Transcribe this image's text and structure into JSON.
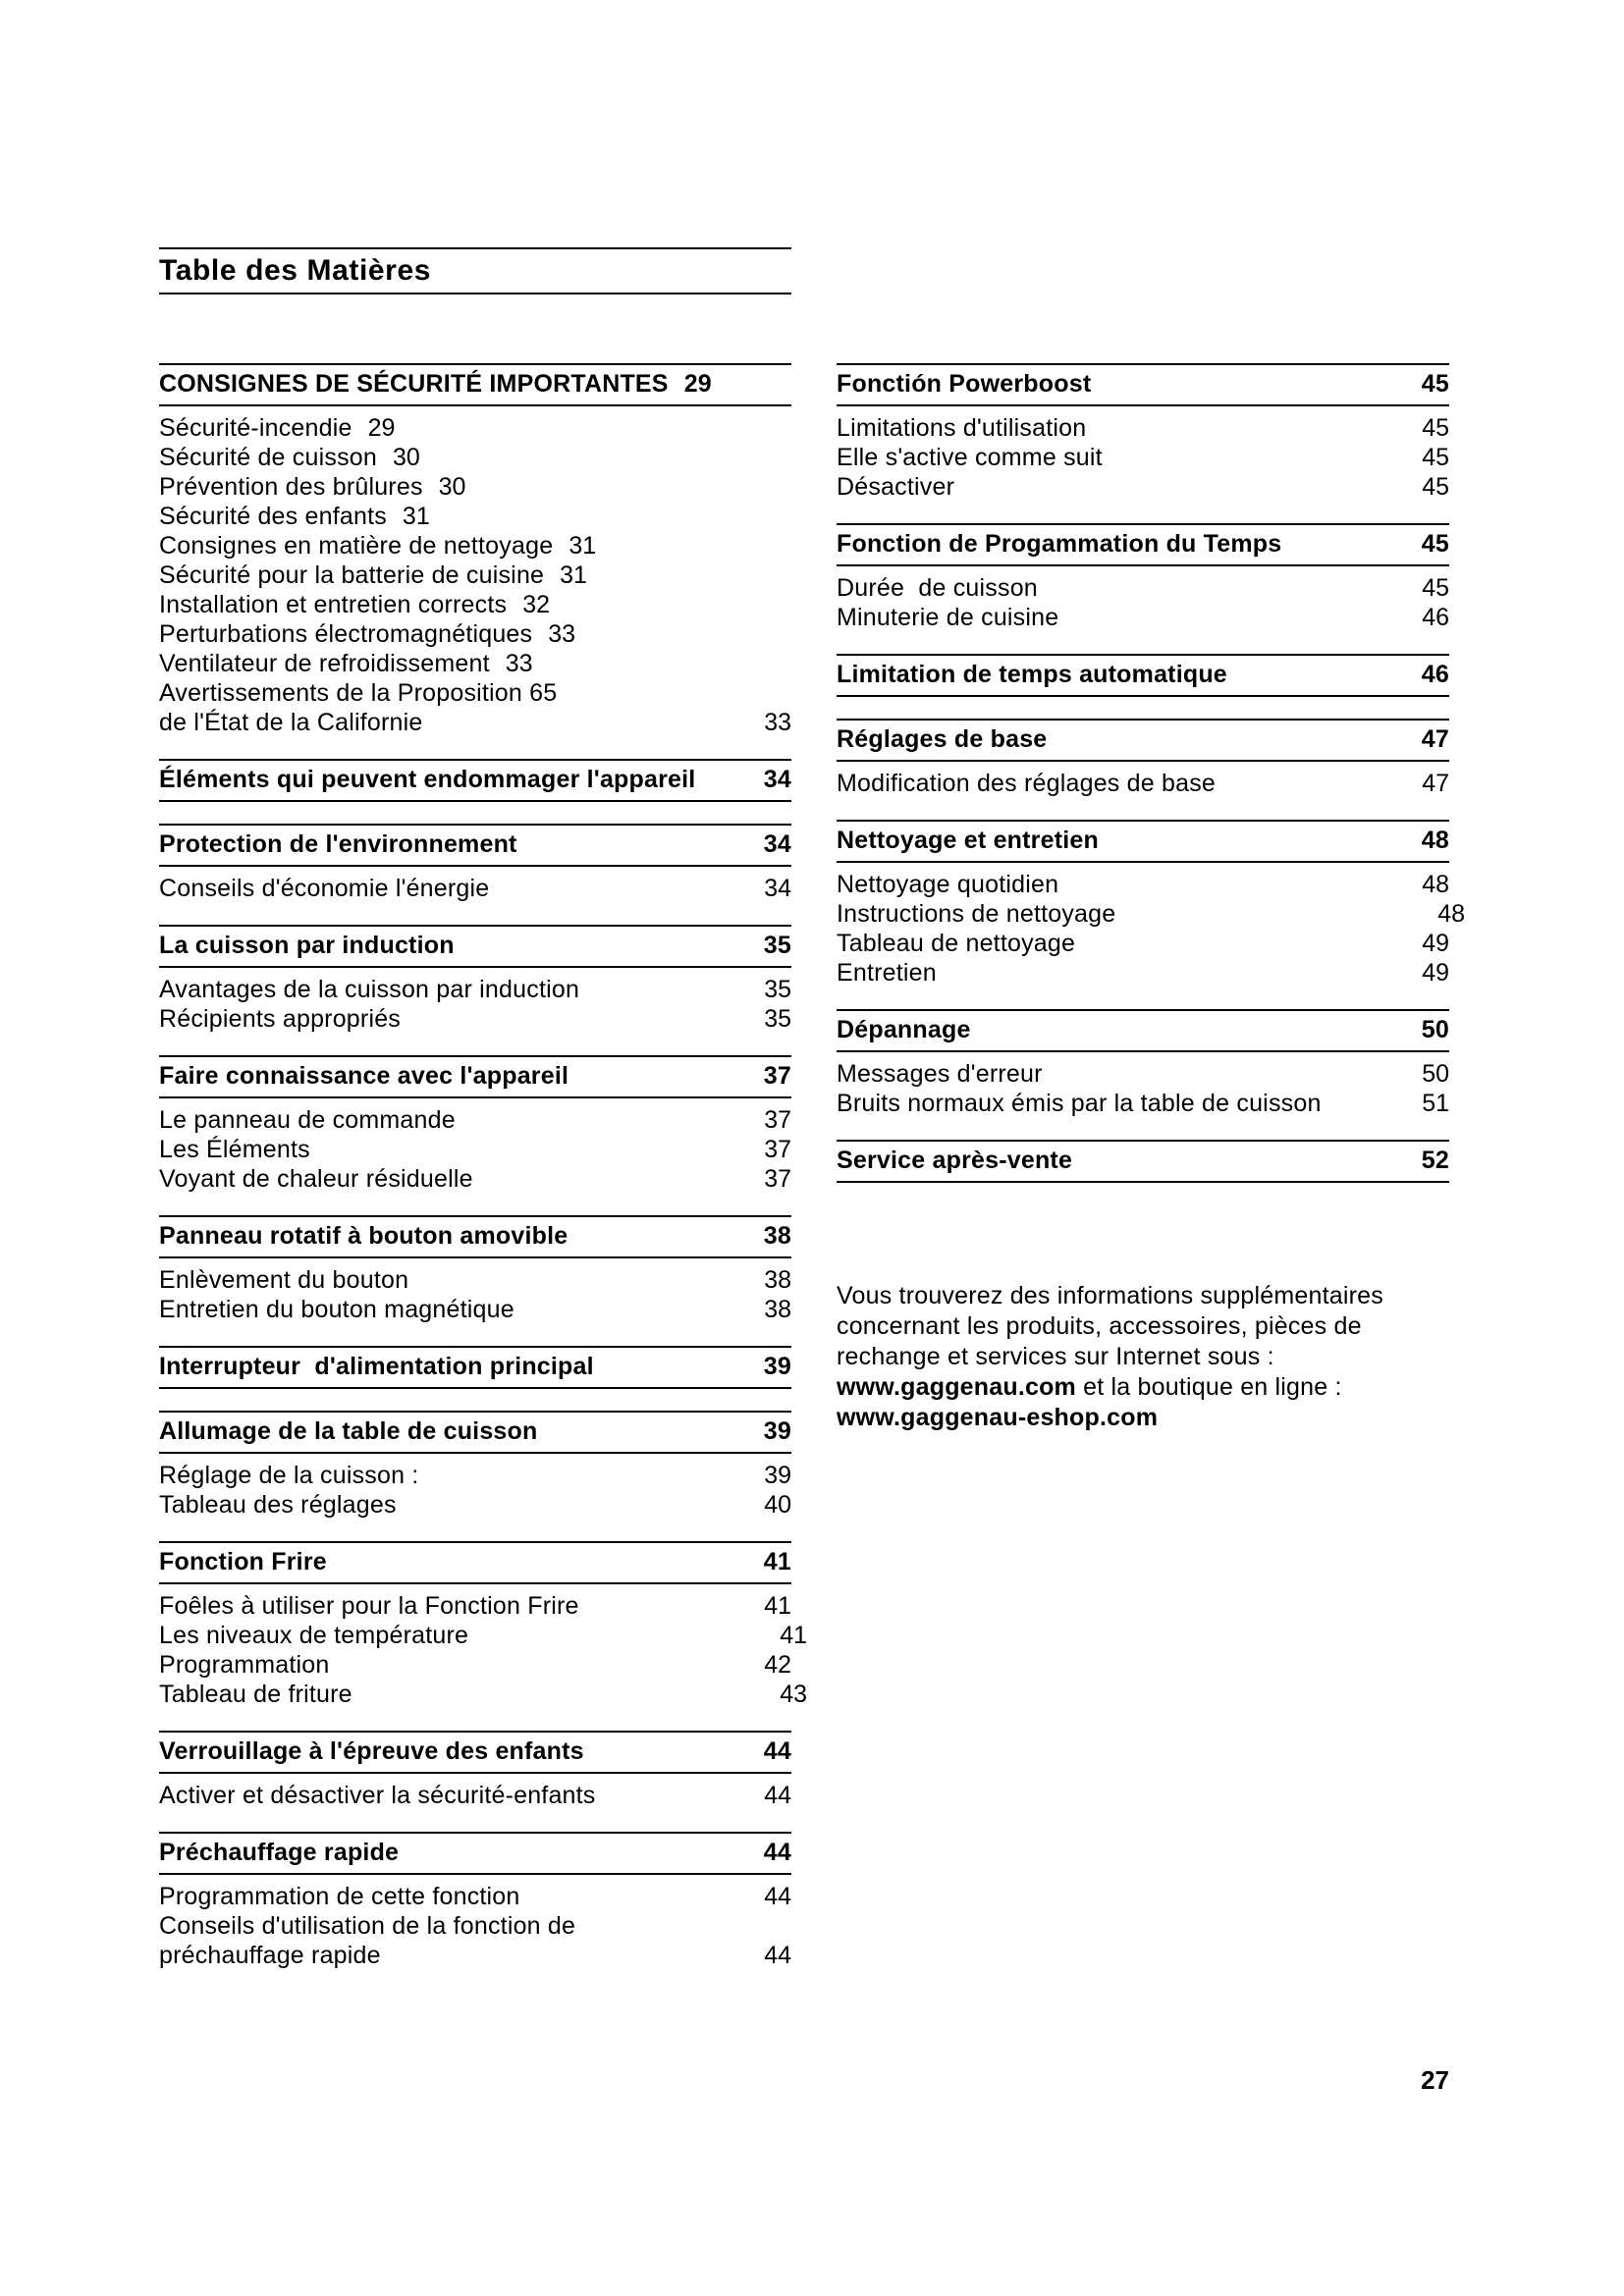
{
  "page": {
    "title": "Table des Matières",
    "footer_page_number": "27",
    "colors": {
      "ink": "#000000",
      "paper": "#ffffff"
    }
  },
  "left_column": {
    "sections": [
      {
        "heading": {
          "label": "CONSIGNES DE SÉCURITÉ IMPORTANTES",
          "page": "29",
          "page_align": "inline"
        },
        "entries": [
          {
            "label": "Sécurité-incendie",
            "page": "29",
            "page_align": "inline"
          },
          {
            "label": "Sécurité de cuisson",
            "page": "30",
            "page_align": "inline"
          },
          {
            "label": "Prévention des brûlures",
            "page": "30",
            "page_align": "inline"
          },
          {
            "label": "Sécurité des enfants",
            "page": "31",
            "page_align": "inline"
          },
          {
            "label": "Consignes en matière de nettoyage",
            "page": "31",
            "page_align": "inline"
          },
          {
            "label": "Sécurité pour la batterie de cuisine",
            "page": "31",
            "page_align": "inline"
          },
          {
            "label": "Installation et entretien corrects",
            "page": "32",
            "page_align": "inline"
          },
          {
            "label": "Perturbations électromagnétiques",
            "page": "33",
            "page_align": "inline"
          },
          {
            "label": "Ventilateur de refroidissement",
            "page": "33",
            "page_align": "inline"
          },
          {
            "label": "Avertissements de la Proposition 65",
            "page": "",
            "page_align": "inline"
          },
          {
            "label": "de l'État de la Californie",
            "page": "33",
            "page_align": "right"
          }
        ]
      },
      {
        "heading": {
          "label": "Éléments qui peuvent endommager l'appareil",
          "page": "34",
          "page_align": "right"
        },
        "entries": []
      },
      {
        "heading": {
          "label": "Protection de l'environnement",
          "page": "34",
          "page_align": "right"
        },
        "entries": [
          {
            "label": "Conseils d'économie l'énergie",
            "page": "34",
            "page_align": "right"
          }
        ]
      },
      {
        "heading": {
          "label": "La cuisson par induction",
          "page": "35",
          "page_align": "right"
        },
        "entries": [
          {
            "label": "Avantages de la cuisson par induction",
            "page": "35",
            "page_align": "right"
          },
          {
            "label": "Récipients appropriés",
            "page": "35",
            "page_align": "right"
          }
        ]
      },
      {
        "heading": {
          "label": "Faire connaissance avec l'appareil",
          "page": "37",
          "page_align": "right"
        },
        "entries": [
          {
            "label": "Le panneau de commande",
            "page": "37",
            "page_align": "right"
          },
          {
            "label": "Les Éléments",
            "page": "37",
            "page_align": "right"
          },
          {
            "label": "Voyant de chaleur résiduelle",
            "page": "37",
            "page_align": "right"
          }
        ]
      },
      {
        "heading": {
          "label": "Panneau rotatif à bouton amovible",
          "page": "38",
          "page_align": "right"
        },
        "entries": [
          {
            "label": "Enlèvement du bouton",
            "page": "38",
            "page_align": "right"
          },
          {
            "label": "Entretien du bouton magnétique",
            "page": "38",
            "page_align": "right"
          }
        ]
      },
      {
        "heading": {
          "label": "Interrupteur  d'alimentation principal",
          "page": "39",
          "page_align": "right"
        },
        "entries": []
      },
      {
        "heading": {
          "label": "Allumage de la table de cuisson",
          "page": "39",
          "page_align": "right"
        },
        "entries": [
          {
            "label": "Réglage de la cuisson :",
            "page": "39",
            "page_align": "right"
          },
          {
            "label": "Tableau des réglages",
            "page": "40",
            "page_align": "right"
          }
        ]
      },
      {
        "heading": {
          "label": "Fonction Frire",
          "page": "41",
          "page_align": "right"
        },
        "entries": [
          {
            "label": "Foêles à utiliser pour la Fonction Frire",
            "page": "41",
            "page_align": "right"
          },
          {
            "label": "Les niveaux de température",
            "page": "41",
            "page_align": "right",
            "page_shift": true
          },
          {
            "label": "Programmation",
            "page": "42",
            "page_align": "right"
          },
          {
            "label": "Tableau de friture",
            "page": "43",
            "page_align": "right",
            "page_shift": true
          }
        ]
      },
      {
        "heading": {
          "label": "Verrouillage à l'épreuve des enfants",
          "page": "44",
          "page_align": "right"
        },
        "entries": [
          {
            "label": "Activer et désactiver la sécurité-enfants",
            "page": "44",
            "page_align": "right"
          }
        ]
      },
      {
        "heading": {
          "label": "Préchauffage rapide",
          "page": "44",
          "page_align": "right"
        },
        "entries": [
          {
            "label": "Programmation de cette fonction",
            "page": "44",
            "page_align": "right"
          },
          {
            "label": "Conseils d'utilisation de la fonction de",
            "page": "",
            "page_align": "right"
          },
          {
            "label": "préchauffage rapide",
            "page": "44",
            "page_align": "right"
          }
        ]
      }
    ]
  },
  "right_column": {
    "sections": [
      {
        "heading": {
          "label": "Fonctión Powerboost",
          "page": "45",
          "page_align": "right"
        },
        "entries": [
          {
            "label": "Limitations d'utilisation",
            "page": "45",
            "page_align": "right"
          },
          {
            "label": "Elle s'active comme suit",
            "page": "45",
            "page_align": "right"
          },
          {
            "label": "Désactiver",
            "page": "45",
            "page_align": "right"
          }
        ]
      },
      {
        "heading": {
          "label": "Fonction de Progammation du Temps",
          "page": "45",
          "page_align": "right"
        },
        "entries": [
          {
            "label": "Durée  de cuisson",
            "page": "45",
            "page_align": "right"
          },
          {
            "label": "Minuterie de cuisine",
            "page": "46",
            "page_align": "right"
          }
        ]
      },
      {
        "heading": {
          "label": "Limitation de temps automatique",
          "page": "46",
          "page_align": "right"
        },
        "entries": []
      },
      {
        "heading": {
          "label": "Réglages de base",
          "page": "47",
          "page_align": "right"
        },
        "entries": [
          {
            "label": "Modification des réglages de base",
            "page": "47",
            "page_align": "right"
          }
        ]
      },
      {
        "heading": {
          "label": "Nettoyage et entretien",
          "page": "48",
          "page_align": "right"
        },
        "entries": [
          {
            "label": "Nettoyage quotidien",
            "page": "48",
            "page_align": "right"
          },
          {
            "label": "Instructions de nettoyage",
            "page": "48",
            "page_align": "right",
            "page_shift": true
          },
          {
            "label": "Tableau de nettoyage",
            "page": "49",
            "page_align": "right"
          },
          {
            "label": "Entretien",
            "page": "49",
            "page_align": "right"
          }
        ]
      },
      {
        "heading": {
          "label": "Dépannage",
          "page": "50",
          "page_align": "right"
        },
        "entries": [
          {
            "label": "Messages d'erreur",
            "page": "50",
            "page_align": "right"
          },
          {
            "label": "Bruits normaux émis par la table de cuisson",
            "page": "51",
            "page_align": "right"
          }
        ]
      },
      {
        "heading": {
          "label": "Service après-vente",
          "page": "52",
          "page_align": "right"
        },
        "entries": []
      }
    ],
    "info_paragraph": {
      "segments": [
        {
          "text": "Vous trouverez des informations supplémentaires concernant les produits, accessoires, pièces de rechange et services sur Internet sous : ",
          "bold": false
        },
        {
          "text": "www.gaggenau.com",
          "bold": true
        },
        {
          "text": " et la boutique en ligne : ",
          "bold": false
        },
        {
          "text": "www.gaggenau-eshop.com",
          "bold": true
        }
      ]
    }
  }
}
